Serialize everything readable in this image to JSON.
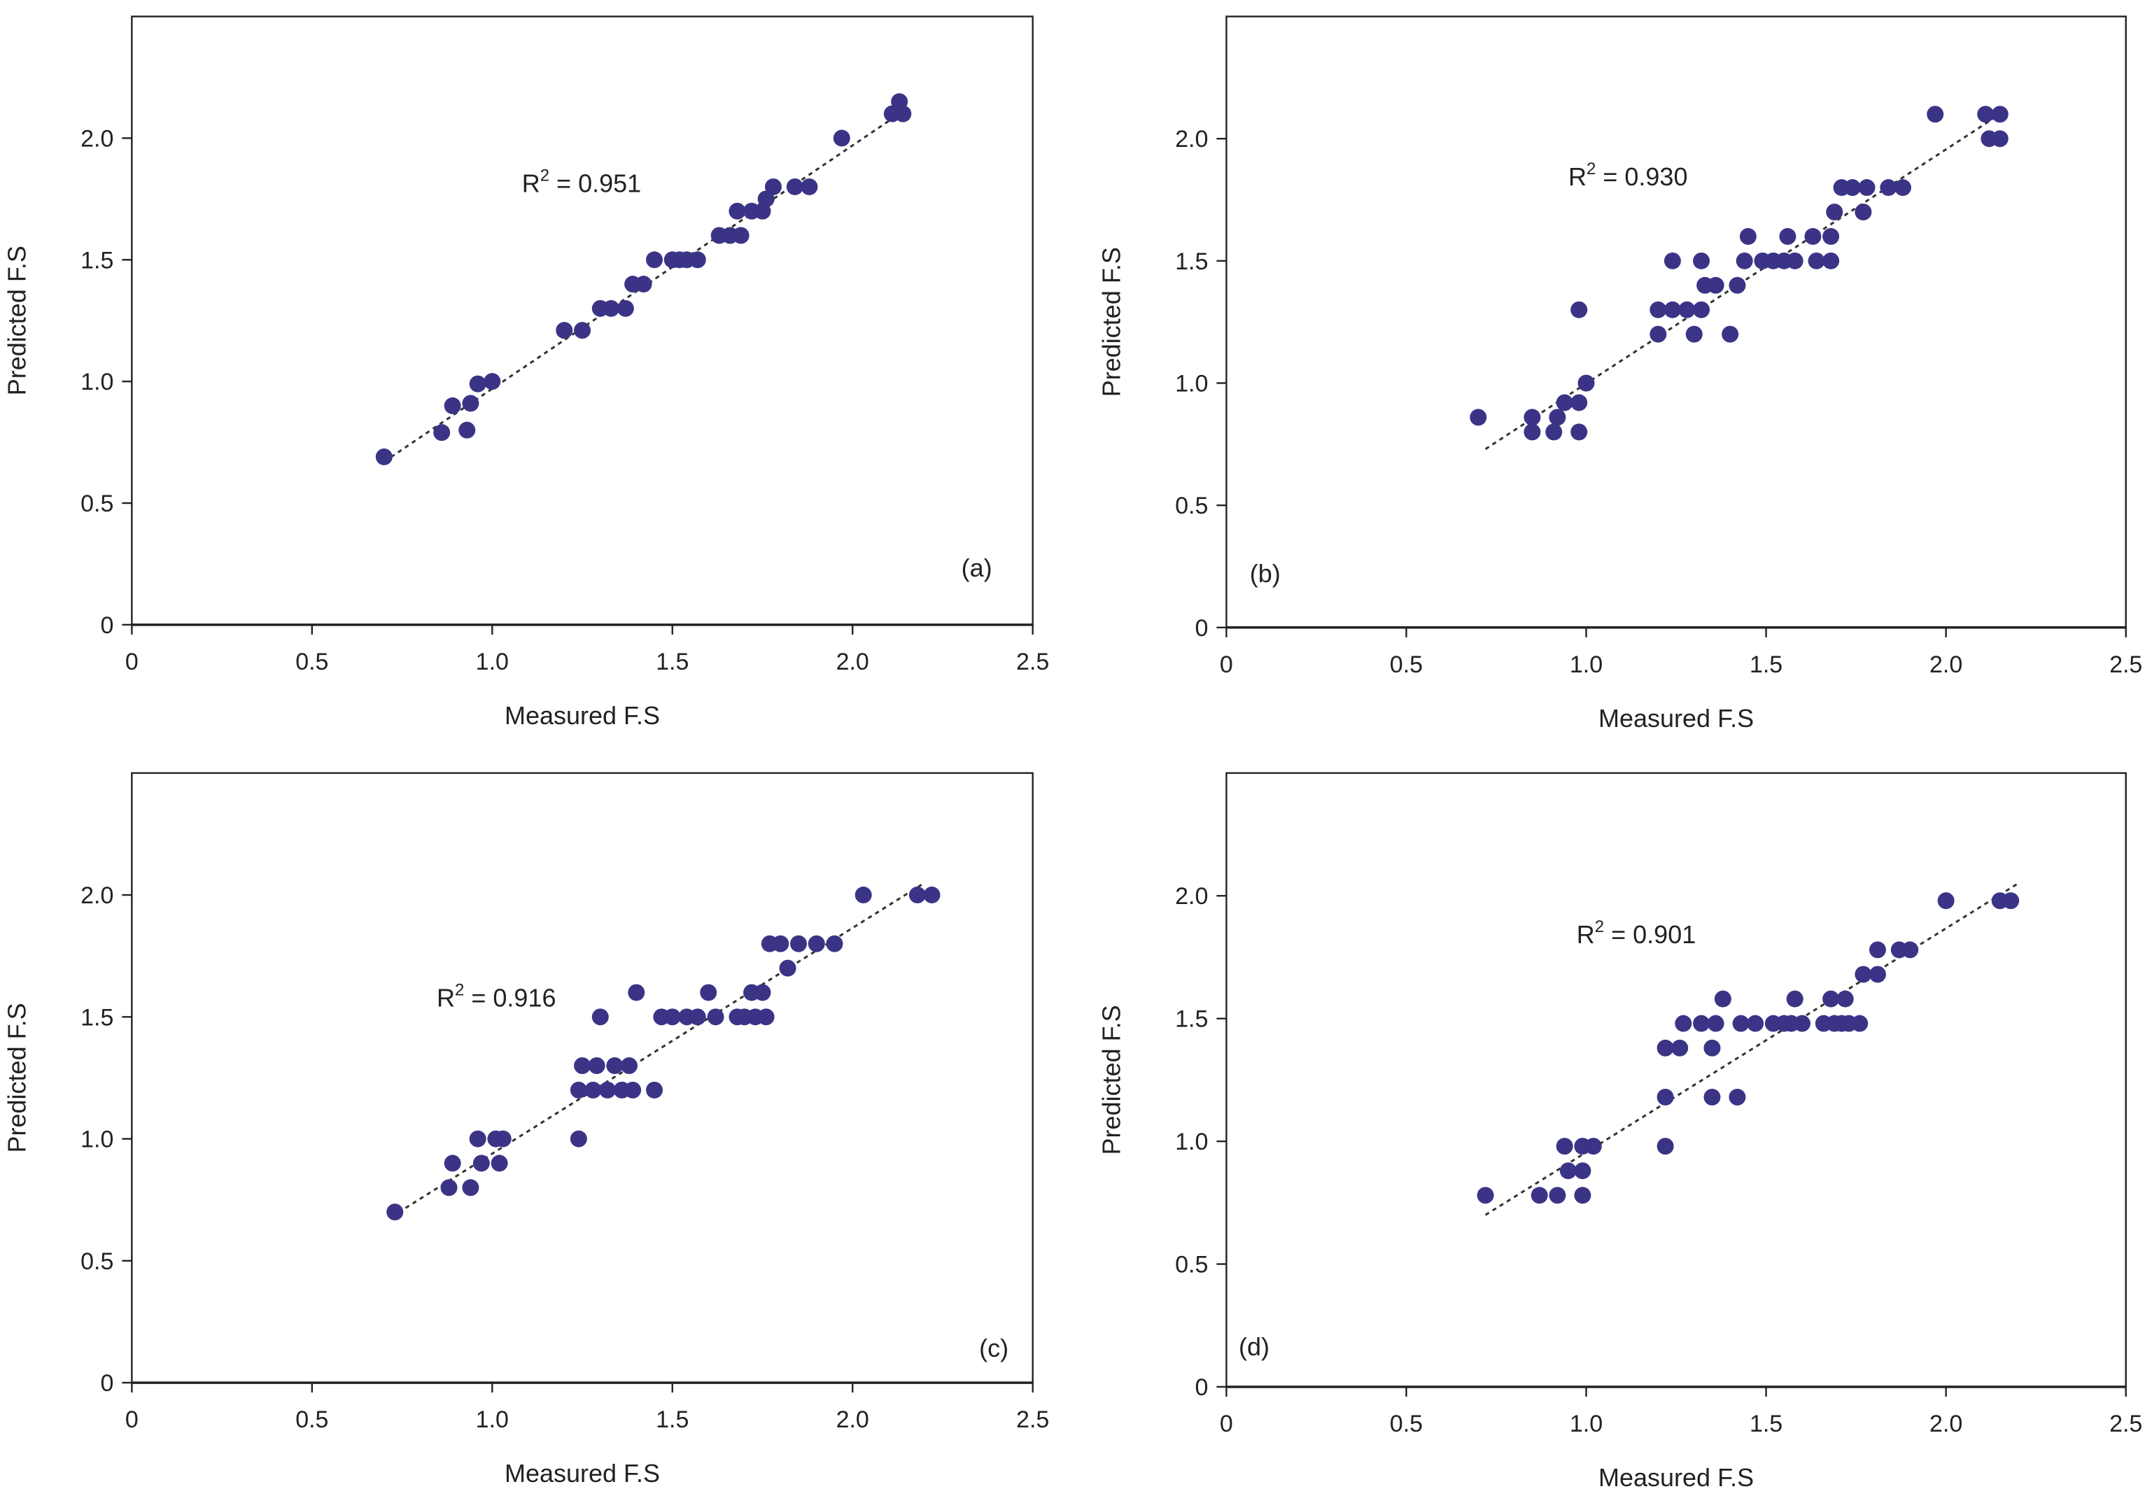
{
  "colors": {
    "point": "#3b3486",
    "axis": "#222222",
    "trend": "#333333"
  },
  "chart_data": [
    {
      "type": "scatter",
      "panel_label": "(a)",
      "xlabel": "Measured F.S",
      "ylabel": "Predicted F.S",
      "xlim": [
        0,
        2.5
      ],
      "ylim": [
        0,
        2.5
      ],
      "x_ticks": [
        "0",
        "0.5",
        "1.0",
        "1.5",
        "2.0",
        "2.5"
      ],
      "y_ticks": [
        "0",
        "0.5",
        "1.0",
        "1.5",
        "2.0"
      ],
      "r2_base": "R",
      "r2_exp": "2",
      "r2_value": " = 0.951",
      "trend": [
        [
          0.7,
          0.67
        ],
        [
          2.15,
          2.12
        ]
      ],
      "points": [
        [
          0.7,
          0.69
        ],
        [
          0.86,
          0.79
        ],
        [
          0.89,
          0.9
        ],
        [
          0.93,
          0.8
        ],
        [
          0.94,
          0.91
        ],
        [
          0.96,
          0.99
        ],
        [
          1.0,
          1.0
        ],
        [
          1.2,
          1.21
        ],
        [
          1.25,
          1.21
        ],
        [
          1.3,
          1.3
        ],
        [
          1.33,
          1.3
        ],
        [
          1.37,
          1.3
        ],
        [
          1.39,
          1.4
        ],
        [
          1.42,
          1.4
        ],
        [
          1.45,
          1.5
        ],
        [
          1.5,
          1.5
        ],
        [
          1.52,
          1.5
        ],
        [
          1.54,
          1.5
        ],
        [
          1.57,
          1.5
        ],
        [
          1.63,
          1.6
        ],
        [
          1.66,
          1.6
        ],
        [
          1.69,
          1.6
        ],
        [
          1.68,
          1.7
        ],
        [
          1.72,
          1.7
        ],
        [
          1.75,
          1.7
        ],
        [
          1.76,
          1.75
        ],
        [
          1.78,
          1.8
        ],
        [
          1.84,
          1.8
        ],
        [
          1.88,
          1.8
        ],
        [
          1.97,
          2.0
        ],
        [
          2.11,
          2.1
        ],
        [
          2.13,
          2.15
        ],
        [
          2.14,
          2.1
        ]
      ]
    },
    {
      "type": "scatter",
      "panel_label": "(b)",
      "xlabel": "Measured F.S",
      "ylabel": "Predicted F.S",
      "xlim": [
        0,
        2.5
      ],
      "ylim": [
        0,
        2.5
      ],
      "x_ticks": [
        "0",
        "0.5",
        "1.0",
        "1.5",
        "2.0",
        "2.5"
      ],
      "y_ticks": [
        "0",
        "0.5",
        "1.0",
        "1.5",
        "2.0"
      ],
      "r2_base": "R",
      "r2_exp": "2",
      "r2_value": " = 0.930",
      "trend": [
        [
          0.72,
          0.73
        ],
        [
          2.15,
          2.1
        ]
      ],
      "points": [
        [
          0.7,
          0.86
        ],
        [
          0.85,
          0.86
        ],
        [
          0.85,
          0.8
        ],
        [
          0.91,
          0.8
        ],
        [
          0.92,
          0.86
        ],
        [
          0.94,
          0.92
        ],
        [
          0.98,
          0.92
        ],
        [
          0.98,
          0.8
        ],
        [
          0.98,
          1.3
        ],
        [
          1.0,
          1.0
        ],
        [
          1.2,
          1.3
        ],
        [
          1.2,
          1.2
        ],
        [
          1.24,
          1.3
        ],
        [
          1.24,
          1.5
        ],
        [
          1.28,
          1.3
        ],
        [
          1.3,
          1.2
        ],
        [
          1.32,
          1.3
        ],
        [
          1.32,
          1.5
        ],
        [
          1.33,
          1.4
        ],
        [
          1.36,
          1.4
        ],
        [
          1.4,
          1.2
        ],
        [
          1.42,
          1.4
        ],
        [
          1.44,
          1.5
        ],
        [
          1.45,
          1.6
        ],
        [
          1.49,
          1.5
        ],
        [
          1.52,
          1.5
        ],
        [
          1.55,
          1.5
        ],
        [
          1.56,
          1.6
        ],
        [
          1.58,
          1.5
        ],
        [
          1.63,
          1.6
        ],
        [
          1.64,
          1.5
        ],
        [
          1.68,
          1.5
        ],
        [
          1.68,
          1.6
        ],
        [
          1.69,
          1.7
        ],
        [
          1.71,
          1.8
        ],
        [
          1.74,
          1.8
        ],
        [
          1.77,
          1.7
        ],
        [
          1.78,
          1.8
        ],
        [
          1.84,
          1.8
        ],
        [
          1.88,
          1.8
        ],
        [
          1.97,
          2.1
        ],
        [
          2.11,
          2.1
        ],
        [
          2.12,
          2.0
        ],
        [
          2.15,
          2.0
        ],
        [
          2.15,
          2.1
        ]
      ]
    },
    {
      "type": "scatter",
      "panel_label": "(c)",
      "xlabel": "Measured F.S",
      "ylabel": "Predicted F.S",
      "xlim": [
        0,
        2.5
      ],
      "ylim": [
        0,
        2.5
      ],
      "x_ticks": [
        "0",
        "0.5",
        "1.0",
        "1.5",
        "2.0",
        "2.5"
      ],
      "y_ticks": [
        "0",
        "0.5",
        "1.0",
        "1.5",
        "2.0"
      ],
      "r2_base": "R",
      "r2_exp": "2",
      "r2_value": " = 0.916",
      "trend": [
        [
          0.72,
          0.68
        ],
        [
          2.2,
          2.05
        ]
      ],
      "points": [
        [
          0.73,
          0.7
        ],
        [
          0.88,
          0.8
        ],
        [
          0.89,
          0.9
        ],
        [
          0.94,
          0.8
        ],
        [
          0.96,
          1.0
        ],
        [
          0.97,
          0.9
        ],
        [
          1.01,
          1.0
        ],
        [
          1.02,
          0.9
        ],
        [
          1.03,
          1.0
        ],
        [
          1.24,
          1.2
        ],
        [
          1.24,
          1.0
        ],
        [
          1.25,
          1.3
        ],
        [
          1.28,
          1.2
        ],
        [
          1.29,
          1.3
        ],
        [
          1.3,
          1.5
        ],
        [
          1.32,
          1.2
        ],
        [
          1.34,
          1.3
        ],
        [
          1.36,
          1.2
        ],
        [
          1.38,
          1.3
        ],
        [
          1.39,
          1.2
        ],
        [
          1.4,
          1.6
        ],
        [
          1.45,
          1.2
        ],
        [
          1.47,
          1.5
        ],
        [
          1.5,
          1.5
        ],
        [
          1.54,
          1.5
        ],
        [
          1.57,
          1.5
        ],
        [
          1.6,
          1.6
        ],
        [
          1.62,
          1.5
        ],
        [
          1.68,
          1.5
        ],
        [
          1.7,
          1.5
        ],
        [
          1.72,
          1.6
        ],
        [
          1.73,
          1.5
        ],
        [
          1.75,
          1.6
        ],
        [
          1.76,
          1.5
        ],
        [
          1.77,
          1.8
        ],
        [
          1.8,
          1.8
        ],
        [
          1.82,
          1.7
        ],
        [
          1.85,
          1.8
        ],
        [
          1.9,
          1.8
        ],
        [
          1.95,
          1.8
        ],
        [
          2.03,
          2.0
        ],
        [
          2.18,
          2.0
        ],
        [
          2.22,
          2.0
        ]
      ]
    },
    {
      "type": "scatter",
      "panel_label": "(d)",
      "xlabel": "Measured F.S",
      "ylabel": "Predicted F.S",
      "xlim": [
        0,
        2.5
      ],
      "ylim": [
        0,
        2.5
      ],
      "x_ticks": [
        "0",
        "0.5",
        "1.0",
        "1.5",
        "2.0",
        "2.5"
      ],
      "y_ticks": [
        "0",
        "0.5",
        "1.0",
        "1.5",
        "2.0"
      ],
      "r2_base": "R",
      "r2_exp": "2",
      "r2_value": " = 0.901",
      "trend": [
        [
          0.72,
          0.7
        ],
        [
          2.2,
          2.05
        ]
      ],
      "points": [
        [
          0.72,
          0.78
        ],
        [
          0.87,
          0.78
        ],
        [
          0.92,
          0.78
        ],
        [
          0.94,
          0.98
        ],
        [
          0.95,
          0.88
        ],
        [
          0.99,
          0.78
        ],
        [
          0.99,
          0.88
        ],
        [
          0.99,
          0.98
        ],
        [
          1.02,
          0.98
        ],
        [
          1.22,
          0.98
        ],
        [
          1.22,
          1.18
        ],
        [
          1.22,
          1.38
        ],
        [
          1.26,
          1.38
        ],
        [
          1.27,
          1.48
        ],
        [
          1.32,
          1.48
        ],
        [
          1.35,
          1.18
        ],
        [
          1.35,
          1.38
        ],
        [
          1.36,
          1.48
        ],
        [
          1.38,
          1.58
        ],
        [
          1.42,
          1.18
        ],
        [
          1.43,
          1.48
        ],
        [
          1.47,
          1.48
        ],
        [
          1.52,
          1.48
        ],
        [
          1.55,
          1.48
        ],
        [
          1.57,
          1.48
        ],
        [
          1.58,
          1.58
        ],
        [
          1.6,
          1.48
        ],
        [
          1.66,
          1.48
        ],
        [
          1.68,
          1.58
        ],
        [
          1.69,
          1.48
        ],
        [
          1.71,
          1.48
        ],
        [
          1.72,
          1.58
        ],
        [
          1.73,
          1.48
        ],
        [
          1.76,
          1.48
        ],
        [
          1.77,
          1.68
        ],
        [
          1.81,
          1.68
        ],
        [
          1.81,
          1.78
        ],
        [
          1.87,
          1.78
        ],
        [
          1.9,
          1.78
        ],
        [
          2.0,
          1.98
        ],
        [
          2.15,
          1.98
        ],
        [
          2.18,
          1.98
        ]
      ]
    }
  ]
}
